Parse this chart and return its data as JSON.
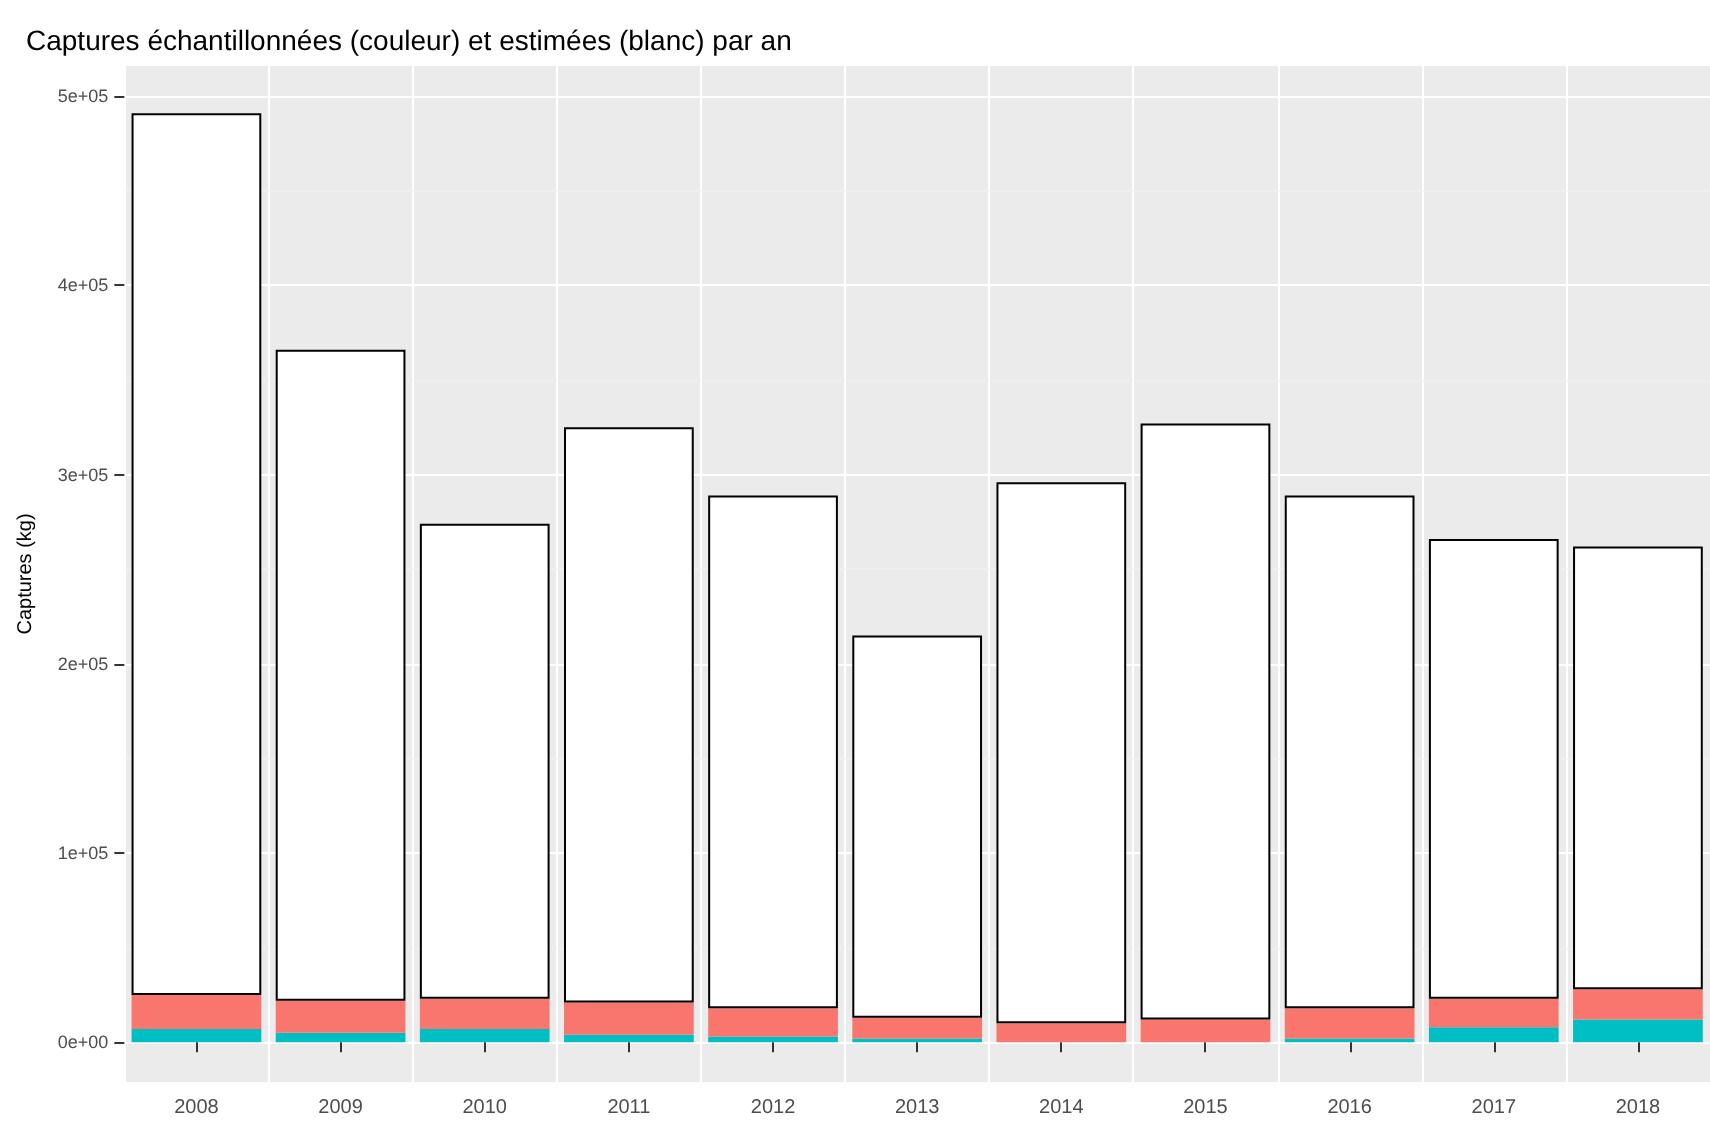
{
  "chart_data": {
    "type": "bar",
    "title": "Captures échantillonnées (couleur) et estimées (blanc) par an",
    "ylabel": "Captures (kg)",
    "categories": [
      "2008",
      "2009",
      "2010",
      "2011",
      "2012",
      "2013",
      "2014",
      "2015",
      "2016",
      "2017",
      "2018"
    ],
    "stacked": true,
    "series": [
      {
        "color": "#00bfc4",
        "values": [
          7000,
          5000,
          7000,
          4000,
          3000,
          2000,
          0,
          0,
          2000,
          8000,
          12000
        ]
      },
      {
        "color": "#f8766d",
        "values": [
          18000,
          17000,
          16000,
          17000,
          15000,
          11000,
          10000,
          12000,
          16000,
          15000,
          16000
        ]
      },
      {
        "color": "#ffffff",
        "values": [
          466000,
          344000,
          251000,
          304000,
          271000,
          202000,
          286000,
          315000,
          271000,
          243000,
          234000
        ]
      }
    ],
    "ylim": [
      -21000,
      516000
    ],
    "yticks": [
      {
        "value": 0,
        "label": "0e+00"
      },
      {
        "value": 100000,
        "label": "1e+05"
      },
      {
        "value": 200000,
        "label": "2e+05"
      },
      {
        "value": 300000,
        "label": "3e+05"
      },
      {
        "value": 400000,
        "label": "4e+05"
      },
      {
        "value": 500000,
        "label": "5e+05"
      }
    ],
    "grid": true
  }
}
